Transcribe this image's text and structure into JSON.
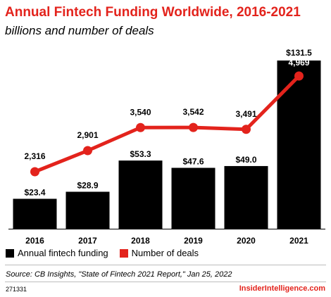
{
  "header": {
    "title": "Annual Fintech Funding Worldwide, 2016-2021",
    "subtitle": "billions and number of deals"
  },
  "legend": {
    "funding_label": "Annual fintech funding",
    "deals_label": "Number of deals"
  },
  "footer": {
    "source": "Source: CB Insights, \"State of Fintech 2021 Report,\" Jan 25, 2022",
    "chart_id": "271331",
    "brand": "InsiderIntelligence.com"
  },
  "colors": {
    "bar": "#000000",
    "line": "#e3231c",
    "title": "#e3231c"
  },
  "chart_data": {
    "type": "bar",
    "categories": [
      "2016",
      "2017",
      "2018",
      "2019",
      "2020",
      "2021"
    ],
    "series": [
      {
        "name": "Annual fintech funding",
        "type": "bar",
        "values": [
          23.4,
          28.9,
          53.3,
          47.6,
          49.0,
          131.5
        ],
        "labels": [
          "$23.4",
          "$28.9",
          "$53.3",
          "$47.6",
          "$49.0",
          "$131.5"
        ]
      },
      {
        "name": "Number of deals",
        "type": "line",
        "values": [
          2316,
          2901,
          3540,
          3542,
          3491,
          4969
        ],
        "labels": [
          "2,316",
          "2,901",
          "3,540",
          "3,542",
          "3,491",
          "4,969"
        ]
      }
    ],
    "legend_position": "bottom-left",
    "grid": false
  }
}
